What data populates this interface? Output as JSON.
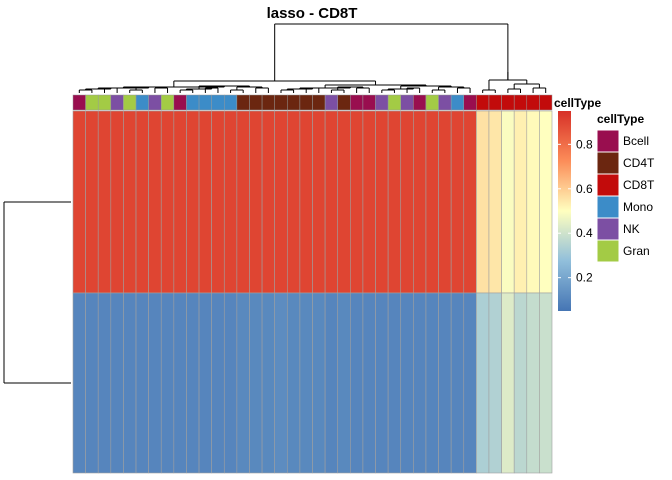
{
  "chart_data": {
    "type": "heatmap",
    "title": "lasso - CD8T",
    "annotation_label": "cellType",
    "legend": {
      "title": "cellType",
      "entries": [
        {
          "label": "Bcell",
          "color": "#990E4F"
        },
        {
          "label": "CD4T",
          "color": "#6B2610"
        },
        {
          "label": "CD8T",
          "color": "#C20B0B"
        },
        {
          "label": "Mono",
          "color": "#3C8CC8"
        },
        {
          "label": "NK",
          "color": "#7C4FA3"
        },
        {
          "label": "Gran",
          "color": "#A3CB45"
        }
      ]
    },
    "colorbar": {
      "ticks": [
        "0.8",
        "0.6",
        "0.4",
        "0.2"
      ],
      "tick_values": [
        0.8,
        0.6,
        0.4,
        0.2
      ],
      "range": [
        0.05,
        0.95
      ]
    },
    "column_celltypes": [
      "Bcell",
      "Gran",
      "Gran",
      "NK",
      "Gran",
      "Mono",
      "NK",
      "Gran",
      "Bcell",
      "Mono",
      "Mono",
      "Mono",
      "Mono",
      "CD4T",
      "CD4T",
      "CD4T",
      "CD4T",
      "CD4T",
      "CD4T",
      "CD4T",
      "NK",
      "CD4T",
      "Bcell",
      "Bcell",
      "NK",
      "Gran",
      "NK",
      "Bcell",
      "Gran",
      "NK",
      "Mono",
      "Bcell",
      "CD8T",
      "CD8T",
      "CD8T",
      "CD8T",
      "CD8T",
      "CD8T"
    ],
    "rows": [
      {
        "values": [
          0.9,
          0.9,
          0.9,
          0.9,
          0.9,
          0.9,
          0.9,
          0.9,
          0.9,
          0.9,
          0.9,
          0.9,
          0.9,
          0.9,
          0.9,
          0.9,
          0.9,
          0.9,
          0.9,
          0.9,
          0.9,
          0.9,
          0.9,
          0.9,
          0.9,
          0.9,
          0.9,
          0.9,
          0.9,
          0.9,
          0.9,
          0.9,
          0.56,
          0.55,
          0.49,
          0.53,
          0.51,
          0.5
        ]
      },
      {
        "values": [
          0.1,
          0.1,
          0.1,
          0.1,
          0.1,
          0.1,
          0.1,
          0.1,
          0.1,
          0.1,
          0.1,
          0.1,
          0.1,
          0.11,
          0.11,
          0.11,
          0.12,
          0.11,
          0.11,
          0.11,
          0.1,
          0.11,
          0.1,
          0.1,
          0.1,
          0.1,
          0.1,
          0.1,
          0.1,
          0.1,
          0.1,
          0.1,
          0.33,
          0.34,
          0.43,
          0.36,
          0.38,
          0.39
        ]
      }
    ]
  }
}
